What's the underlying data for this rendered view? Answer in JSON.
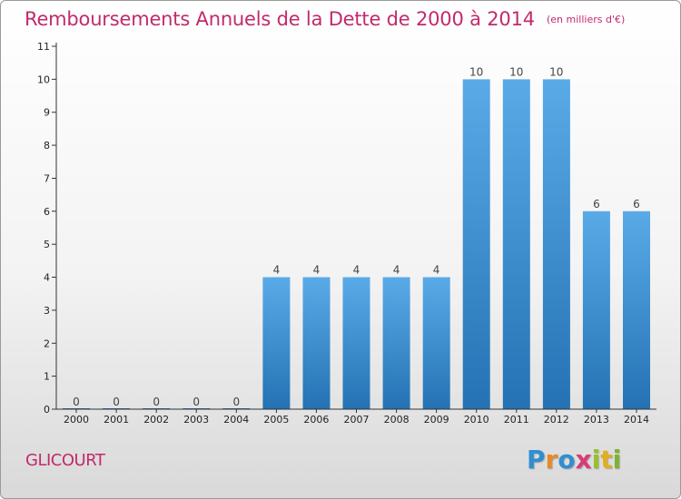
{
  "header": {
    "title": "Remboursements Annuels de la Dette de 2000 à 2014",
    "unit": "(en milliers d'€)"
  },
  "footer": {
    "commune": "GLICOURT",
    "logo": [
      "P",
      "r",
      "o",
      "x",
      "i",
      "t",
      "i"
    ]
  },
  "colors": {
    "title": "#c22a6c",
    "bar_top": "#5aaae8",
    "bar_bottom": "#2472b3",
    "axis": "#333333"
  },
  "chart_data": {
    "type": "bar",
    "title": "Remboursements Annuels de la Dette de 2000 à 2014",
    "xlabel": "",
    "ylabel": "",
    "categories": [
      "2000",
      "2001",
      "2002",
      "2003",
      "2004",
      "2005",
      "2006",
      "2007",
      "2008",
      "2009",
      "2010",
      "2011",
      "2012",
      "2013",
      "2014"
    ],
    "values": [
      0,
      0,
      0,
      0,
      0,
      4,
      4,
      4,
      4,
      4,
      10,
      10,
      10,
      6,
      6
    ],
    "value_labels": [
      "0",
      "0",
      "0",
      "0",
      "0",
      "4",
      "4",
      "4",
      "4",
      "4",
      "10",
      "10",
      "10",
      "6",
      "6"
    ],
    "yticks": [
      "0",
      "1",
      "2",
      "3",
      "4",
      "5",
      "6",
      "7",
      "8",
      "9",
      "10",
      "11"
    ],
    "ylim": [
      0,
      11
    ],
    "grid": false,
    "legend": "none"
  }
}
